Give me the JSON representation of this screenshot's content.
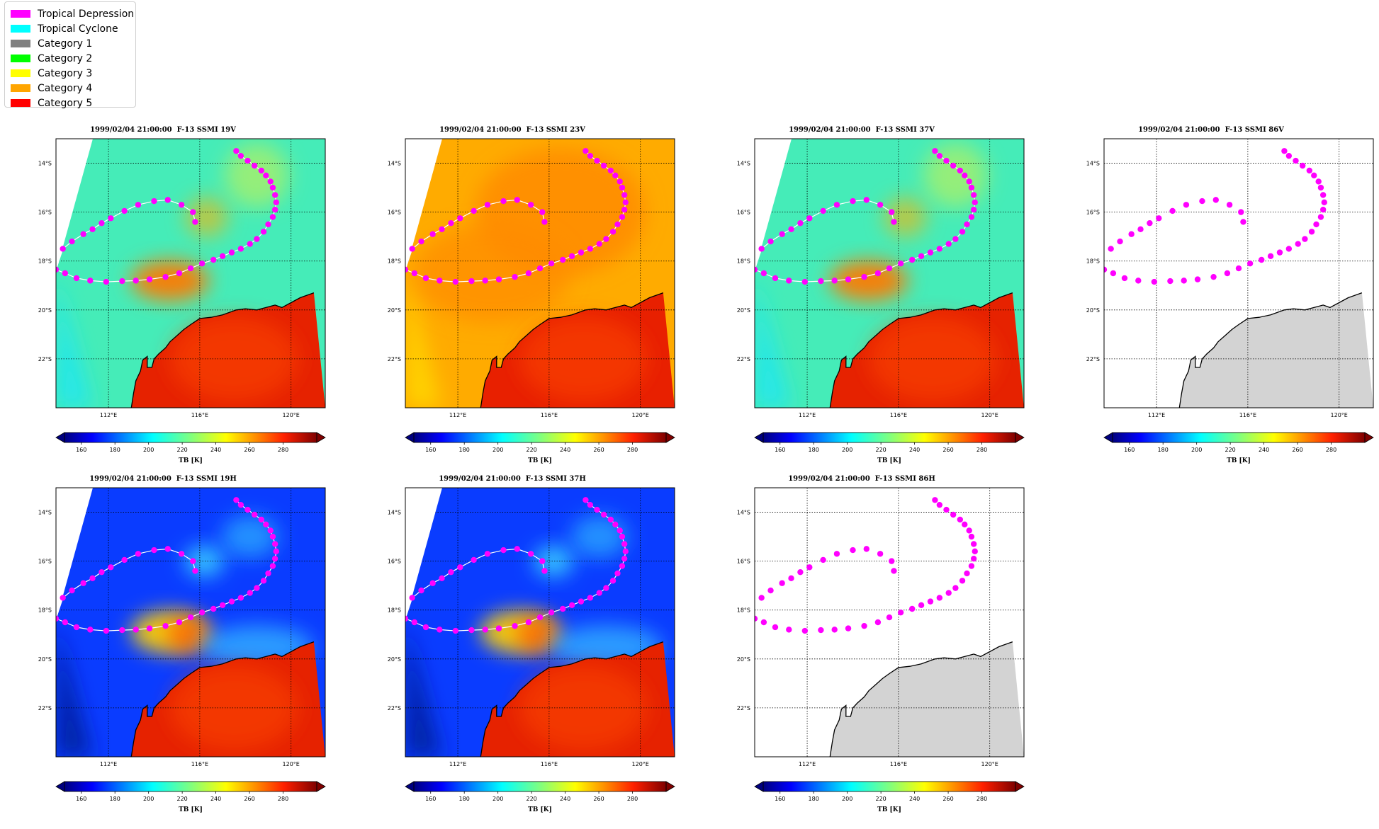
{
  "legend": [
    {
      "label": "Tropical Depression",
      "color": "#ff00ff"
    },
    {
      "label": "Tropical Cyclone",
      "color": "#00ffff"
    },
    {
      "label": "Category 1",
      "color": "#808080"
    },
    {
      "label": "Category 2",
      "color": "#00ff00"
    },
    {
      "label": "Category 3",
      "color": "#ffff00"
    },
    {
      "label": "Category 4",
      "color": "#ffa500"
    },
    {
      "label": "Category 5",
      "color": "#ff0000"
    }
  ],
  "axes": {
    "lat_ticks": [
      "14°S",
      "16°S",
      "18°S",
      "20°S",
      "22°S"
    ],
    "lon_ticks": [
      "112°E",
      "116°E",
      "120°E"
    ]
  },
  "colorbar": {
    "label": "TB [K]",
    "ticks": [
      "160",
      "180",
      "200",
      "220",
      "240",
      "260",
      "280"
    ],
    "range": [
      150,
      300
    ]
  },
  "panels": [
    {
      "title": "1999/02/04 21:00:00  F-13 SSMI 19V",
      "style": "green"
    },
    {
      "title": "1999/02/04 21:00:00  F-13 SSMI 23V",
      "style": "orange"
    },
    {
      "title": "1999/02/04 21:00:00  F-13 SSMI 37V",
      "style": "green"
    },
    {
      "title": "1999/02/04 21:00:00  F-13 SSMI 86V",
      "style": "blank"
    },
    {
      "title": "1999/02/04 21:00:00  F-13 SSMI 19H",
      "style": "blue"
    },
    {
      "title": "1999/02/04 21:00:00  F-13 SSMI 37H",
      "style": "blue"
    },
    {
      "title": "1999/02/04 21:00:00  F-13 SSMI 86H",
      "style": "blank"
    }
  ],
  "track": {
    "category": "Tropical Depression",
    "points": [
      [
        117.6,
        13.5
      ],
      [
        117.8,
        13.7
      ],
      [
        118.1,
        13.9
      ],
      [
        118.4,
        14.1
      ],
      [
        118.7,
        14.3
      ],
      [
        118.9,
        14.5
      ],
      [
        119.1,
        14.75
      ],
      [
        119.2,
        15.0
      ],
      [
        119.3,
        15.3
      ],
      [
        119.35,
        15.6
      ],
      [
        119.3,
        15.9
      ],
      [
        119.2,
        16.2
      ],
      [
        119.0,
        16.5
      ],
      [
        118.8,
        16.8
      ],
      [
        118.5,
        17.1
      ],
      [
        118.2,
        17.3
      ],
      [
        117.8,
        17.5
      ],
      [
        117.4,
        17.65
      ],
      [
        117.0,
        17.8
      ],
      [
        116.6,
        17.95
      ],
      [
        116.1,
        18.1
      ],
      [
        115.6,
        18.3
      ],
      [
        115.1,
        18.5
      ],
      [
        114.5,
        18.65
      ],
      [
        113.8,
        18.75
      ],
      [
        113.2,
        18.8
      ],
      [
        112.6,
        18.82
      ],
      [
        111.9,
        18.85
      ],
      [
        111.2,
        18.8
      ],
      [
        110.6,
        18.7
      ],
      [
        110.1,
        18.5
      ],
      [
        109.7,
        18.35
      ],
      [
        110.0,
        17.5
      ],
      [
        110.4,
        17.2
      ],
      [
        110.9,
        16.9
      ],
      [
        111.3,
        16.7
      ],
      [
        111.7,
        16.45
      ],
      [
        112.1,
        16.25
      ],
      [
        112.7,
        15.95
      ],
      [
        113.3,
        15.7
      ],
      [
        114.0,
        15.55
      ],
      [
        114.6,
        15.5
      ],
      [
        115.2,
        15.7
      ],
      [
        115.7,
        16.0
      ],
      [
        115.8,
        16.4
      ]
    ]
  },
  "coast": [
    [
      113.0,
      24.0
    ],
    [
      113.1,
      23.4
    ],
    [
      113.2,
      22.9
    ],
    [
      113.4,
      22.5
    ],
    [
      113.5,
      22.05
    ],
    [
      113.7,
      21.9
    ],
    [
      113.7,
      22.35
    ],
    [
      113.9,
      22.35
    ],
    [
      114.0,
      22.0
    ],
    [
      114.2,
      21.8
    ],
    [
      114.5,
      21.55
    ],
    [
      114.7,
      21.3
    ],
    [
      115.0,
      21.05
    ],
    [
      115.3,
      20.8
    ],
    [
      115.6,
      20.6
    ],
    [
      116.0,
      20.35
    ],
    [
      116.5,
      20.3
    ],
    [
      117.0,
      20.2
    ],
    [
      117.6,
      20.0
    ],
    [
      118.0,
      19.95
    ],
    [
      118.5,
      20.0
    ],
    [
      118.9,
      19.9
    ],
    [
      119.3,
      19.8
    ],
    [
      119.6,
      19.9
    ],
    [
      120.0,
      19.7
    ],
    [
      120.4,
      19.5
    ],
    [
      121.0,
      19.3
    ]
  ]
}
